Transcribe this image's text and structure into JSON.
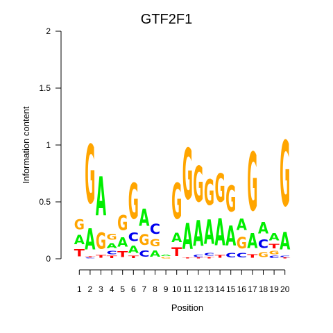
{
  "chart_data": {
    "type": "sequence-logo",
    "title": "GTF2F1",
    "xlabel": "Position",
    "ylabel": "Information content",
    "ylim": [
      0,
      2
    ],
    "yticks": [
      "0",
      "0.5",
      "1",
      "1.5",
      "2"
    ],
    "x": [
      "1",
      "2",
      "3",
      "4",
      "5",
      "6",
      "7",
      "8",
      "9",
      "10",
      "11",
      "12",
      "13",
      "14",
      "15",
      "16",
      "17",
      "18",
      "19",
      "20"
    ],
    "colors": {
      "A": "#00ee00",
      "C": "#0000ee",
      "G": "#ffa500",
      "T": "#ff0000"
    },
    "positions": [
      [
        [
          "T",
          0.1
        ],
        [
          "A",
          0.13
        ],
        [
          "G",
          0.14
        ]
      ],
      [
        [
          "C",
          0.01
        ],
        [
          "T",
          0.01
        ],
        [
          "A",
          0.3
        ],
        [
          "G",
          0.83
        ]
      ],
      [
        [
          "T",
          0.04
        ],
        [
          "G",
          0.23
        ],
        [
          "A",
          0.55
        ]
      ],
      [
        [
          "T",
          0.03
        ],
        [
          "C",
          0.05
        ],
        [
          "A",
          0.07
        ],
        [
          "G",
          0.08
        ]
      ],
      [
        [
          "T",
          0.08
        ],
        [
          "A",
          0.13
        ],
        [
          "G",
          0.21
        ]
      ],
      [
        [
          "T",
          0.03
        ],
        [
          "A",
          0.1
        ],
        [
          "C",
          0.12
        ],
        [
          "G",
          0.5
        ]
      ],
      [
        [
          "C",
          0.09
        ],
        [
          "G",
          0.15
        ],
        [
          "A",
          0.24
        ]
      ],
      [
        [
          "A",
          0.09
        ],
        [
          "G",
          0.1
        ],
        [
          "C",
          0.14
        ]
      ],
      [
        [
          "G",
          0.02
        ],
        [
          "A",
          0.02
        ]
      ],
      [
        [
          "T",
          0.12
        ],
        [
          "A",
          0.13
        ],
        [
          "G",
          0.5
        ]
      ],
      [
        [
          "T",
          0.01
        ],
        [
          "A",
          0.37
        ],
        [
          "G",
          0.72
        ]
      ],
      [
        [
          "T",
          0.01
        ],
        [
          "C",
          0.03
        ],
        [
          "A",
          0.36
        ],
        [
          "G",
          0.5
        ]
      ],
      [
        [
          "T",
          0.02
        ],
        [
          "C",
          0.04
        ],
        [
          "A",
          0.34
        ],
        [
          "G",
          0.36
        ]
      ],
      [
        [
          "T",
          0.04
        ],
        [
          "A",
          0.38
        ],
        [
          "G",
          0.4
        ]
      ],
      [
        [
          "C",
          0.06
        ],
        [
          "A",
          0.28
        ],
        [
          "G",
          0.37
        ]
      ],
      [
        [
          "C",
          0.06
        ],
        [
          "G",
          0.16
        ],
        [
          "A",
          0.16
        ]
      ],
      [
        [
          "T",
          0.05
        ],
        [
          "A",
          0.21
        ],
        [
          "G",
          0.82
        ]
      ],
      [
        [
          "G",
          0.07
        ],
        [
          "C",
          0.12
        ],
        [
          "A",
          0.16
        ]
      ],
      [
        [
          "C",
          0.03
        ],
        [
          "G",
          0.05
        ],
        [
          "T",
          0.06
        ],
        [
          "A",
          0.1
        ]
      ],
      [
        [
          "T",
          0.01
        ],
        [
          "C",
          0.02
        ],
        [
          "A",
          0.25
        ],
        [
          "G",
          0.92
        ]
      ]
    ]
  }
}
